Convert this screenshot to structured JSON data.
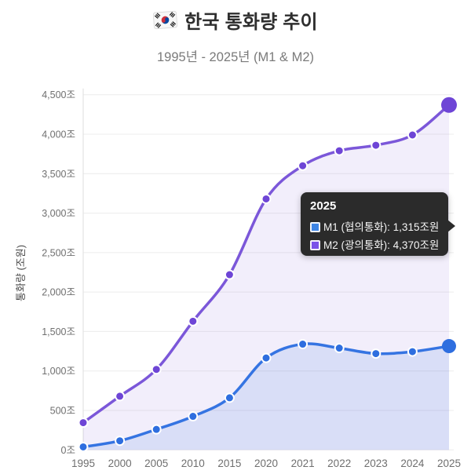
{
  "header": {
    "title": "한국 통화량 추이",
    "subtitle": "1995년 - 2025년 (M1 & M2)",
    "flag_icon": "korea-flag"
  },
  "chart_data": {
    "type": "line",
    "title": "한국 통화량 추이",
    "subtitle": "1995년 - 2025년 (M1 & M2)",
    "xlabel": "",
    "ylabel": "통화량 (조원)",
    "categories": [
      "1995",
      "2000",
      "2005",
      "2010",
      "2015",
      "2020",
      "2021",
      "2022",
      "2023",
      "2024",
      "2025"
    ],
    "series": [
      {
        "name": "M1 (협의통화)",
        "values": [
          38,
          115,
          260,
          425,
          660,
          1165,
          1340,
          1290,
          1220,
          1245,
          1315
        ],
        "line_color": "#3574e2",
        "point_color": "#2e6edf",
        "fill_color": "#3574e2",
        "fill_opacity": 0.13,
        "emphasized_last_point_radius": 9
      },
      {
        "name": "M2 (광의통화)",
        "values": [
          345,
          680,
          1020,
          1630,
          2220,
          3180,
          3600,
          3790,
          3860,
          3990,
          4370
        ],
        "line_color": "#7b57d9",
        "point_color": "#6e45d6",
        "fill_color": "#7b57d9",
        "fill_opacity": 0.1,
        "emphasized_last_point_radius": 10
      }
    ],
    "ylim": [
      0,
      4500
    ],
    "y_ticks": [
      0,
      500,
      1000,
      1500,
      2000,
      2500,
      3000,
      3500,
      4000,
      4500
    ],
    "y_tick_suffix": "조",
    "grid": true,
    "grid_color": "#ececec",
    "axis_line_color": "#e3e3e3",
    "tick_label_color": "#6f6f6f",
    "legend_position": "none"
  },
  "tooltip": {
    "title": "2025",
    "rows": [
      {
        "text": "M1 (협의통화): 1,315조원",
        "swatch_color": "#3d85e5"
      },
      {
        "text": "M2 (광의통화): 4,370조원",
        "swatch_color": "#7a52e8"
      }
    ]
  }
}
